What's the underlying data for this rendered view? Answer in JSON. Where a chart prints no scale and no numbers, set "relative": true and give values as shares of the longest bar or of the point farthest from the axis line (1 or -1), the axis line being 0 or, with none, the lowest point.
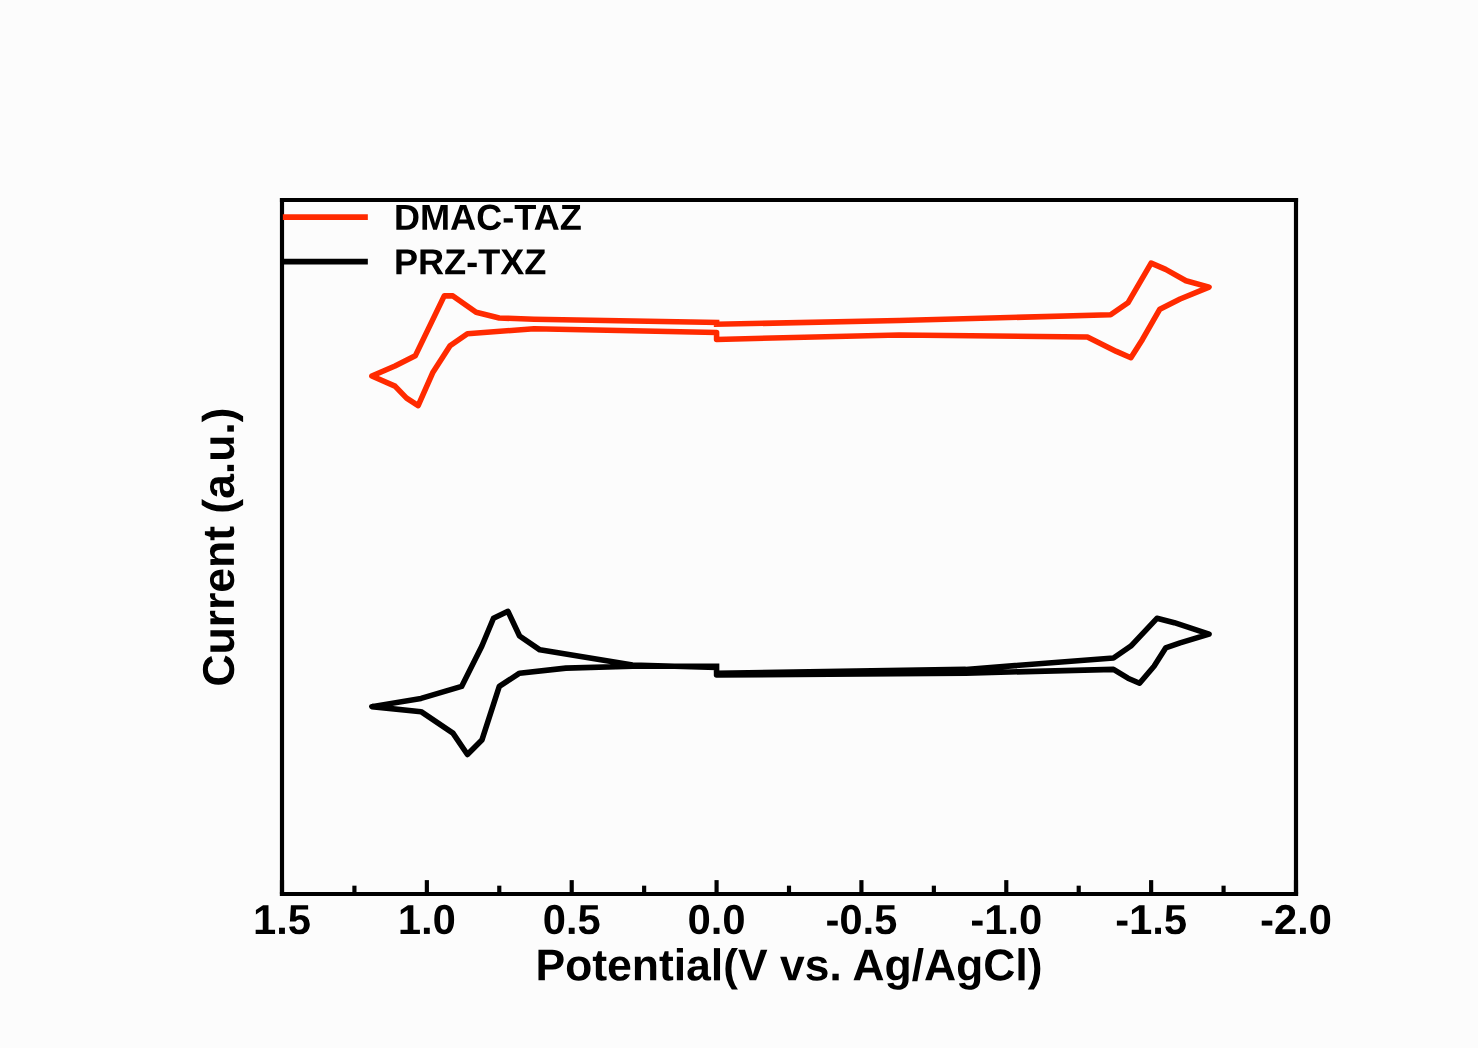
{
  "chart_data": {
    "type": "line",
    "relative": true,
    "xlabel": "Potential(V vs. Ag/AgCl)",
    "ylabel": "Current (a.u.)",
    "xlim": [
      1.5,
      -2.0
    ],
    "xticks": [
      1.5,
      {
        "value": 1,
        "label": "1.0"
      },
      0.5,
      {
        "value": 0,
        "label": "0.0"
      },
      -0.5,
      {
        "value": -1,
        "label": "-1.0"
      },
      -1.5,
      {
        "value": -2,
        "label": "-2.0"
      }
    ],
    "grid": false,
    "legend": "top left",
    "marker": "none",
    "line_style": "solid",
    "series": [
      {
        "name": "DMAC-TAZ",
        "color": "#ff2a00",
        "x": [
          0.0,
          -0.63,
          -1.36,
          -1.42,
          -1.5,
          -1.55,
          -1.62,
          -1.7,
          -1.6,
          -1.53,
          -1.47,
          -1.43,
          -1.38,
          -1.28,
          -0.63,
          0.0,
          0.0,
          0.63,
          0.86,
          0.92,
          0.98,
          1.03,
          1.07,
          1.11,
          1.19,
          1.11,
          1.04,
          0.94,
          0.91,
          0.83,
          0.75,
          0.63,
          0.0
        ],
        "values": [
          0.903,
          0.909,
          0.918,
          0.937,
          1.0,
          0.99,
          0.972,
          0.962,
          0.943,
          0.927,
          0.879,
          0.85,
          0.86,
          0.883,
          0.886,
          0.879,
          0.89,
          0.896,
          0.888,
          0.869,
          0.826,
          0.774,
          0.786,
          0.805,
          0.821,
          0.837,
          0.853,
          0.948,
          0.948,
          0.922,
          0.913,
          0.911,
          0.906
        ]
      },
      {
        "name": "PRZ-TXZ",
        "color": "#000000",
        "x": [
          0.0,
          -0.86,
          -1.37,
          -1.43,
          -1.52,
          -1.58,
          -1.7,
          -1.6,
          -1.55,
          -1.51,
          -1.46,
          -1.42,
          -1.37,
          -0.86,
          0.0,
          0.0,
          0.29,
          0.61,
          0.68,
          0.72,
          0.77,
          0.81,
          0.88,
          1.02,
          1.19,
          1.02,
          0.91,
          0.86,
          0.81,
          0.75,
          0.68,
          0.52,
          0.29,
          0.0
        ],
        "values": [
          0.35,
          0.356,
          0.374,
          0.393,
          0.437,
          0.43,
          0.412,
          0.398,
          0.39,
          0.361,
          0.334,
          0.342,
          0.356,
          0.35,
          0.347,
          0.359,
          0.363,
          0.387,
          0.409,
          0.448,
          0.437,
          0.393,
          0.329,
          0.31,
          0.297,
          0.289,
          0.255,
          0.221,
          0.244,
          0.329,
          0.35,
          0.358,
          0.361,
          0.361
        ]
      }
    ]
  }
}
